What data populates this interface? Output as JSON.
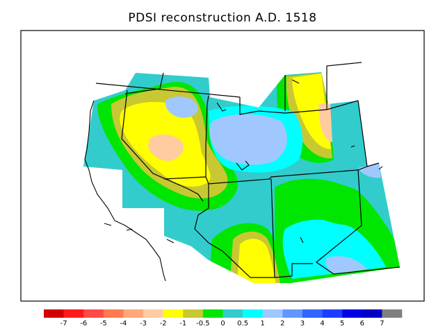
{
  "title": "PDSI reconstruction A.D. 1518",
  "legend": {
    "colors": [
      "#d40000",
      "#ff1a1a",
      "#ff4a4a",
      "#ff7a50",
      "#ffa878",
      "#ffcca0",
      "#ffff00",
      "#c8c832",
      "#00e600",
      "#33cccc",
      "#00ffff",
      "#a0c8ff",
      "#6496ff",
      "#3264ff",
      "#1e3cff",
      "#0000e6",
      "#0000c8",
      "#808080"
    ],
    "labels": [
      "-7",
      "-6",
      "-5",
      "-4",
      "-3",
      "-2",
      "-1",
      "-0.5",
      "0",
      "0.5",
      "1",
      "2",
      "3",
      "4",
      "5",
      "6",
      "7"
    ]
  },
  "map": {
    "region": "Western United States",
    "base_color": "#33cccc",
    "zones": [
      {
        "name": "dry-band-west",
        "color": "#c8c832"
      },
      {
        "name": "dry-core-nevada",
        "color": "#ffff00"
      },
      {
        "name": "dry-peak-nevada",
        "color": "#ffcca0"
      },
      {
        "name": "wet-zone-utah",
        "color": "#a0c8ff"
      },
      {
        "name": "wet-zone-northern-plains",
        "color": "#00ffff"
      },
      {
        "name": "dry-zone-montana",
        "color": "#ffff00"
      },
      {
        "name": "dry-zone-arizona",
        "color": "#ffff00"
      },
      {
        "name": "wet-zone-new-mexico",
        "color": "#00ffff"
      },
      {
        "name": "moist-band-colorado",
        "color": "#00e600"
      }
    ]
  }
}
